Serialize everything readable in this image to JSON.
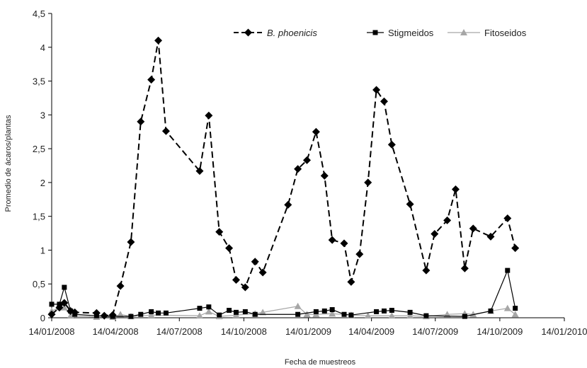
{
  "chart_data": {
    "type": "line",
    "xlabel": "Fecha de muestreos",
    "ylabel": "Promedio de ácaros/plantas",
    "ylim": [
      0,
      4.5
    ],
    "yticks": [
      0,
      0.5,
      1,
      1.5,
      2,
      2.5,
      3,
      3.5,
      4,
      4.5
    ],
    "ytick_labels": [
      "0",
      "0,5",
      "1",
      "1,5",
      "2",
      "2,5",
      "3",
      "3,5",
      "4",
      "4,5"
    ],
    "xlim": [
      "2008-01-14",
      "2010-01-14"
    ],
    "xticks": [
      "2008-01-14",
      "2008-04-14",
      "2008-07-14",
      "2008-10-14",
      "2009-01-14",
      "2009-04-14",
      "2009-07-14",
      "2009-10-14",
      "2010-01-14"
    ],
    "xtick_labels": [
      "14/01/2008",
      "14/04/2008",
      "14/07/2008",
      "14/10/2008",
      "14/01/2009",
      "14/04/2009",
      "14/07/2009",
      "14/10/2009",
      "14/01/2010"
    ],
    "legend_position": "top-right",
    "grid": false,
    "series": [
      {
        "name": "B. phoenicis",
        "italic": true,
        "color": "#000000",
        "dashed": true,
        "marker": "diamond",
        "points": [
          [
            "2008-01-14",
            0.05
          ],
          [
            "2008-01-25",
            0.15
          ],
          [
            "2008-02-01",
            0.22
          ],
          [
            "2008-02-10",
            0.1
          ],
          [
            "2008-02-16",
            0.08
          ],
          [
            "2008-03-18",
            0.07
          ],
          [
            "2008-03-29",
            0.03
          ],
          [
            "2008-04-10",
            0.04
          ],
          [
            "2008-04-21",
            0.47
          ],
          [
            "2008-05-06",
            1.12
          ],
          [
            "2008-05-20",
            2.9
          ],
          [
            "2008-06-04",
            3.52
          ],
          [
            "2008-06-14",
            4.1
          ],
          [
            "2008-06-25",
            2.76
          ],
          [
            "2008-08-12",
            2.17
          ],
          [
            "2008-08-25",
            2.99
          ],
          [
            "2008-09-09",
            1.27
          ],
          [
            "2008-09-23",
            1.03
          ],
          [
            "2008-10-03",
            0.56
          ],
          [
            "2008-10-16",
            0.45
          ],
          [
            "2008-10-30",
            0.83
          ],
          [
            "2008-11-10",
            0.67
          ],
          [
            "2008-12-16",
            1.67
          ],
          [
            "2008-12-30",
            2.2
          ],
          [
            "2009-01-12",
            2.33
          ],
          [
            "2009-01-25",
            2.75
          ],
          [
            "2009-02-06",
            2.1
          ],
          [
            "2009-02-17",
            1.15
          ],
          [
            "2009-03-06",
            1.1
          ],
          [
            "2009-03-16",
            0.53
          ],
          [
            "2009-03-28",
            0.94
          ],
          [
            "2009-04-09",
            2.0
          ],
          [
            "2009-04-21",
            3.37
          ],
          [
            "2009-05-02",
            3.2
          ],
          [
            "2009-05-13",
            2.56
          ],
          [
            "2009-06-08",
            1.68
          ],
          [
            "2009-07-01",
            0.7
          ],
          [
            "2009-07-13",
            1.24
          ],
          [
            "2009-07-31",
            1.44
          ],
          [
            "2009-08-12",
            1.9
          ],
          [
            "2009-08-25",
            0.73
          ],
          [
            "2009-09-06",
            1.32
          ],
          [
            "2009-10-01",
            1.2
          ],
          [
            "2009-10-25",
            1.47
          ],
          [
            "2009-11-05",
            1.03
          ]
        ]
      },
      {
        "name": "Stigmeidos",
        "italic": false,
        "color": "#000000",
        "dashed": false,
        "marker": "square",
        "points": [
          [
            "2008-01-14",
            0.2
          ],
          [
            "2008-01-25",
            0.2
          ],
          [
            "2008-02-01",
            0.45
          ],
          [
            "2008-02-10",
            0.1
          ],
          [
            "2008-02-16",
            0.05
          ],
          [
            "2008-03-18",
            0.03
          ],
          [
            "2008-04-10",
            0.02
          ],
          [
            "2008-05-06",
            0.02
          ],
          [
            "2008-05-20",
            0.05
          ],
          [
            "2008-06-04",
            0.09
          ],
          [
            "2008-06-14",
            0.07
          ],
          [
            "2008-06-25",
            0.07
          ],
          [
            "2008-08-12",
            0.14
          ],
          [
            "2008-08-25",
            0.16
          ],
          [
            "2008-09-09",
            0.04
          ],
          [
            "2008-09-23",
            0.11
          ],
          [
            "2008-10-03",
            0.08
          ],
          [
            "2008-10-16",
            0.09
          ],
          [
            "2008-10-30",
            0.05
          ],
          [
            "2008-12-30",
            0.05
          ],
          [
            "2009-01-25",
            0.09
          ],
          [
            "2009-02-06",
            0.1
          ],
          [
            "2009-02-17",
            0.12
          ],
          [
            "2009-03-06",
            0.05
          ],
          [
            "2009-03-16",
            0.04
          ],
          [
            "2009-04-21",
            0.09
          ],
          [
            "2009-05-02",
            0.1
          ],
          [
            "2009-05-13",
            0.11
          ],
          [
            "2009-06-08",
            0.08
          ],
          [
            "2009-07-01",
            0.03
          ],
          [
            "2009-08-25",
            0.02
          ],
          [
            "2009-10-01",
            0.1
          ],
          [
            "2009-10-25",
            0.7
          ],
          [
            "2009-11-05",
            0.14
          ]
        ]
      },
      {
        "name": "Fitoseidos",
        "italic": false,
        "color": "#a6a6a6",
        "dashed": false,
        "marker": "triangle",
        "points": [
          [
            "2008-01-14",
            0.1
          ],
          [
            "2008-01-25",
            0.15
          ],
          [
            "2008-02-01",
            0.15
          ],
          [
            "2008-02-10",
            0.03
          ],
          [
            "2008-03-18",
            0.01
          ],
          [
            "2008-04-10",
            0.01
          ],
          [
            "2008-04-21",
            0.05
          ],
          [
            "2008-05-06",
            0.02
          ],
          [
            "2008-06-04",
            0.04
          ],
          [
            "2008-08-12",
            0.03
          ],
          [
            "2008-08-25",
            0.09
          ],
          [
            "2008-09-09",
            0.02
          ],
          [
            "2008-10-03",
            0.04
          ],
          [
            "2008-10-30",
            0.06
          ],
          [
            "2008-11-10",
            0.08
          ],
          [
            "2008-12-30",
            0.17
          ],
          [
            "2009-01-12",
            0.05
          ],
          [
            "2009-01-25",
            0.05
          ],
          [
            "2009-02-17",
            0.06
          ],
          [
            "2009-03-16",
            0.04
          ],
          [
            "2009-04-09",
            0.03
          ],
          [
            "2009-05-13",
            0.03
          ],
          [
            "2009-06-08",
            0.03
          ],
          [
            "2009-07-01",
            0.02
          ],
          [
            "2009-07-31",
            0.05
          ],
          [
            "2009-08-25",
            0.06
          ],
          [
            "2009-09-06",
            0.05
          ],
          [
            "2009-10-01",
            0.1
          ],
          [
            "2009-10-25",
            0.14
          ],
          [
            "2009-11-05",
            0.05
          ]
        ]
      }
    ]
  }
}
